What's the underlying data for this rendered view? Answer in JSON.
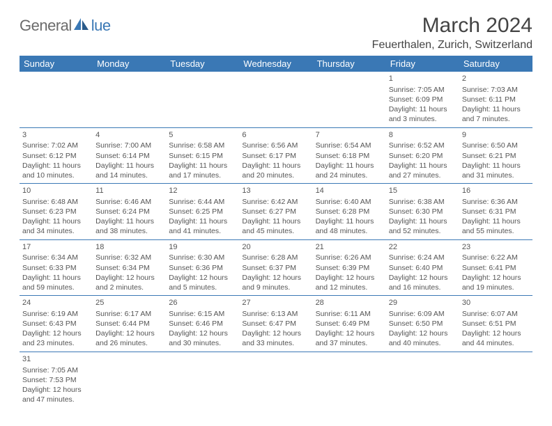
{
  "logo": {
    "text1": "General",
    "text2": "lue"
  },
  "title": "March 2024",
  "location": "Feuerthalen, Zurich, Switzerland",
  "colors": {
    "header_bg": "#3a78b5",
    "header_text": "#ffffff",
    "cell_border": "#3a78b5",
    "text": "#555555",
    "logo_gray": "#6b6b6b",
    "logo_blue": "#3a78b5"
  },
  "weekdays": [
    "Sunday",
    "Monday",
    "Tuesday",
    "Wednesday",
    "Thursday",
    "Friday",
    "Saturday"
  ],
  "weeks": [
    [
      null,
      null,
      null,
      null,
      null,
      {
        "day": "1",
        "sunrise": "Sunrise: 7:05 AM",
        "sunset": "Sunset: 6:09 PM",
        "daylight": "Daylight: 11 hours and 3 minutes."
      },
      {
        "day": "2",
        "sunrise": "Sunrise: 7:03 AM",
        "sunset": "Sunset: 6:11 PM",
        "daylight": "Daylight: 11 hours and 7 minutes."
      }
    ],
    [
      {
        "day": "3",
        "sunrise": "Sunrise: 7:02 AM",
        "sunset": "Sunset: 6:12 PM",
        "daylight": "Daylight: 11 hours and 10 minutes."
      },
      {
        "day": "4",
        "sunrise": "Sunrise: 7:00 AM",
        "sunset": "Sunset: 6:14 PM",
        "daylight": "Daylight: 11 hours and 14 minutes."
      },
      {
        "day": "5",
        "sunrise": "Sunrise: 6:58 AM",
        "sunset": "Sunset: 6:15 PM",
        "daylight": "Daylight: 11 hours and 17 minutes."
      },
      {
        "day": "6",
        "sunrise": "Sunrise: 6:56 AM",
        "sunset": "Sunset: 6:17 PM",
        "daylight": "Daylight: 11 hours and 20 minutes."
      },
      {
        "day": "7",
        "sunrise": "Sunrise: 6:54 AM",
        "sunset": "Sunset: 6:18 PM",
        "daylight": "Daylight: 11 hours and 24 minutes."
      },
      {
        "day": "8",
        "sunrise": "Sunrise: 6:52 AM",
        "sunset": "Sunset: 6:20 PM",
        "daylight": "Daylight: 11 hours and 27 minutes."
      },
      {
        "day": "9",
        "sunrise": "Sunrise: 6:50 AM",
        "sunset": "Sunset: 6:21 PM",
        "daylight": "Daylight: 11 hours and 31 minutes."
      }
    ],
    [
      {
        "day": "10",
        "sunrise": "Sunrise: 6:48 AM",
        "sunset": "Sunset: 6:23 PM",
        "daylight": "Daylight: 11 hours and 34 minutes."
      },
      {
        "day": "11",
        "sunrise": "Sunrise: 6:46 AM",
        "sunset": "Sunset: 6:24 PM",
        "daylight": "Daylight: 11 hours and 38 minutes."
      },
      {
        "day": "12",
        "sunrise": "Sunrise: 6:44 AM",
        "sunset": "Sunset: 6:25 PM",
        "daylight": "Daylight: 11 hours and 41 minutes."
      },
      {
        "day": "13",
        "sunrise": "Sunrise: 6:42 AM",
        "sunset": "Sunset: 6:27 PM",
        "daylight": "Daylight: 11 hours and 45 minutes."
      },
      {
        "day": "14",
        "sunrise": "Sunrise: 6:40 AM",
        "sunset": "Sunset: 6:28 PM",
        "daylight": "Daylight: 11 hours and 48 minutes."
      },
      {
        "day": "15",
        "sunrise": "Sunrise: 6:38 AM",
        "sunset": "Sunset: 6:30 PM",
        "daylight": "Daylight: 11 hours and 52 minutes."
      },
      {
        "day": "16",
        "sunrise": "Sunrise: 6:36 AM",
        "sunset": "Sunset: 6:31 PM",
        "daylight": "Daylight: 11 hours and 55 minutes."
      }
    ],
    [
      {
        "day": "17",
        "sunrise": "Sunrise: 6:34 AM",
        "sunset": "Sunset: 6:33 PM",
        "daylight": "Daylight: 11 hours and 59 minutes."
      },
      {
        "day": "18",
        "sunrise": "Sunrise: 6:32 AM",
        "sunset": "Sunset: 6:34 PM",
        "daylight": "Daylight: 12 hours and 2 minutes."
      },
      {
        "day": "19",
        "sunrise": "Sunrise: 6:30 AM",
        "sunset": "Sunset: 6:36 PM",
        "daylight": "Daylight: 12 hours and 5 minutes."
      },
      {
        "day": "20",
        "sunrise": "Sunrise: 6:28 AM",
        "sunset": "Sunset: 6:37 PM",
        "daylight": "Daylight: 12 hours and 9 minutes."
      },
      {
        "day": "21",
        "sunrise": "Sunrise: 6:26 AM",
        "sunset": "Sunset: 6:39 PM",
        "daylight": "Daylight: 12 hours and 12 minutes."
      },
      {
        "day": "22",
        "sunrise": "Sunrise: 6:24 AM",
        "sunset": "Sunset: 6:40 PM",
        "daylight": "Daylight: 12 hours and 16 minutes."
      },
      {
        "day": "23",
        "sunrise": "Sunrise: 6:22 AM",
        "sunset": "Sunset: 6:41 PM",
        "daylight": "Daylight: 12 hours and 19 minutes."
      }
    ],
    [
      {
        "day": "24",
        "sunrise": "Sunrise: 6:19 AM",
        "sunset": "Sunset: 6:43 PM",
        "daylight": "Daylight: 12 hours and 23 minutes."
      },
      {
        "day": "25",
        "sunrise": "Sunrise: 6:17 AM",
        "sunset": "Sunset: 6:44 PM",
        "daylight": "Daylight: 12 hours and 26 minutes."
      },
      {
        "day": "26",
        "sunrise": "Sunrise: 6:15 AM",
        "sunset": "Sunset: 6:46 PM",
        "daylight": "Daylight: 12 hours and 30 minutes."
      },
      {
        "day": "27",
        "sunrise": "Sunrise: 6:13 AM",
        "sunset": "Sunset: 6:47 PM",
        "daylight": "Daylight: 12 hours and 33 minutes."
      },
      {
        "day": "28",
        "sunrise": "Sunrise: 6:11 AM",
        "sunset": "Sunset: 6:49 PM",
        "daylight": "Daylight: 12 hours and 37 minutes."
      },
      {
        "day": "29",
        "sunrise": "Sunrise: 6:09 AM",
        "sunset": "Sunset: 6:50 PM",
        "daylight": "Daylight: 12 hours and 40 minutes."
      },
      {
        "day": "30",
        "sunrise": "Sunrise: 6:07 AM",
        "sunset": "Sunset: 6:51 PM",
        "daylight": "Daylight: 12 hours and 44 minutes."
      }
    ],
    [
      {
        "day": "31",
        "sunrise": "Sunrise: 7:05 AM",
        "sunset": "Sunset: 7:53 PM",
        "daylight": "Daylight: 12 hours and 47 minutes."
      },
      null,
      null,
      null,
      null,
      null,
      null
    ]
  ]
}
